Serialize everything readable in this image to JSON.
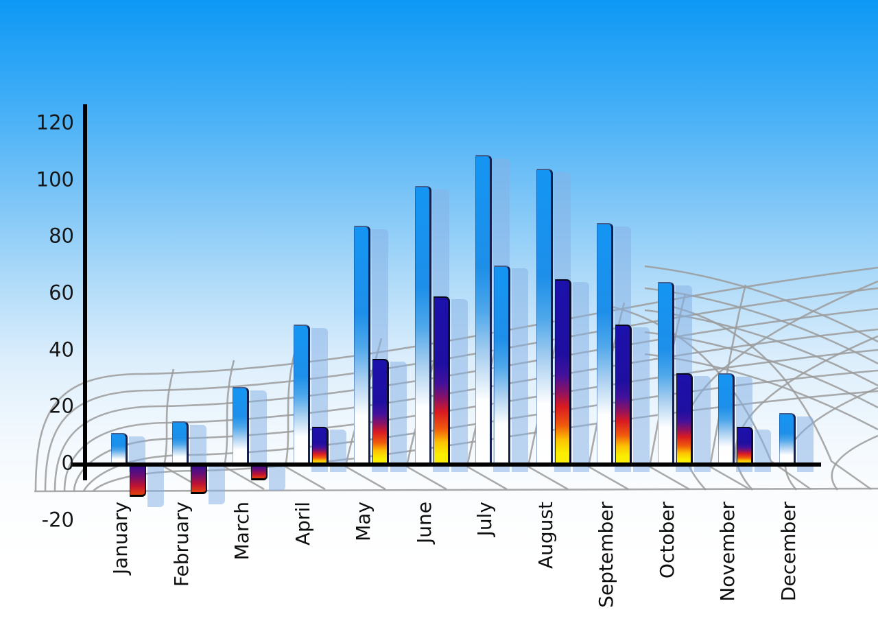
{
  "chart_data": {
    "type": "bar",
    "title": "",
    "xlabel": "",
    "ylabel": "",
    "categories": [
      "January",
      "February",
      "March",
      "April",
      "May",
      "June",
      "July",
      "August",
      "September",
      "October",
      "November",
      "December"
    ],
    "series": [
      {
        "name": "series-1-blue",
        "style": "blue-gradient",
        "values": [
          11,
          15,
          27,
          49,
          84,
          98,
          109,
          104,
          85,
          64,
          32,
          18
        ]
      },
      {
        "name": "series-2-rainbow",
        "style": "rainbow-gradient",
        "values": [
          -11,
          -10,
          -5,
          13,
          37,
          59,
          70,
          65,
          49,
          32,
          13,
          null
        ],
        "point_styles": [
          "rainbow-gradient",
          "rainbow-gradient",
          "rainbow-gradient",
          "rainbow-gradient",
          "rainbow-gradient",
          "rainbow-gradient",
          "blue-gradient",
          "rainbow-gradient",
          "rainbow-gradient",
          "rainbow-gradient",
          "rainbow-gradient",
          null
        ]
      }
    ],
    "yticks": [
      "120",
      "100",
      "80",
      "60",
      "40",
      "20",
      "0",
      "-20"
    ],
    "ytick_values": [
      120,
      100,
      80,
      60,
      40,
      20,
      0,
      -20
    ],
    "ylim": [
      -20,
      120
    ],
    "legend_position": "none",
    "grid": "gray curved perspective mesh behind bars",
    "background": "blue sky gradient fading to white"
  },
  "colors": {
    "sky_top": "#0d98f5",
    "sky_bottom": "#ffffff",
    "bar_blue_top": "#1495f3",
    "bar_rainbow_navy": "#1c11ab",
    "bar_rainbow_red": "#d91a22",
    "bar_rainbow_yellow": "#faee00",
    "bar_shadow": "rgba(134,177,229,0.52)",
    "grid_line": "#9b9b9b",
    "axis_line": "#000000",
    "label_text": "#111111"
  }
}
